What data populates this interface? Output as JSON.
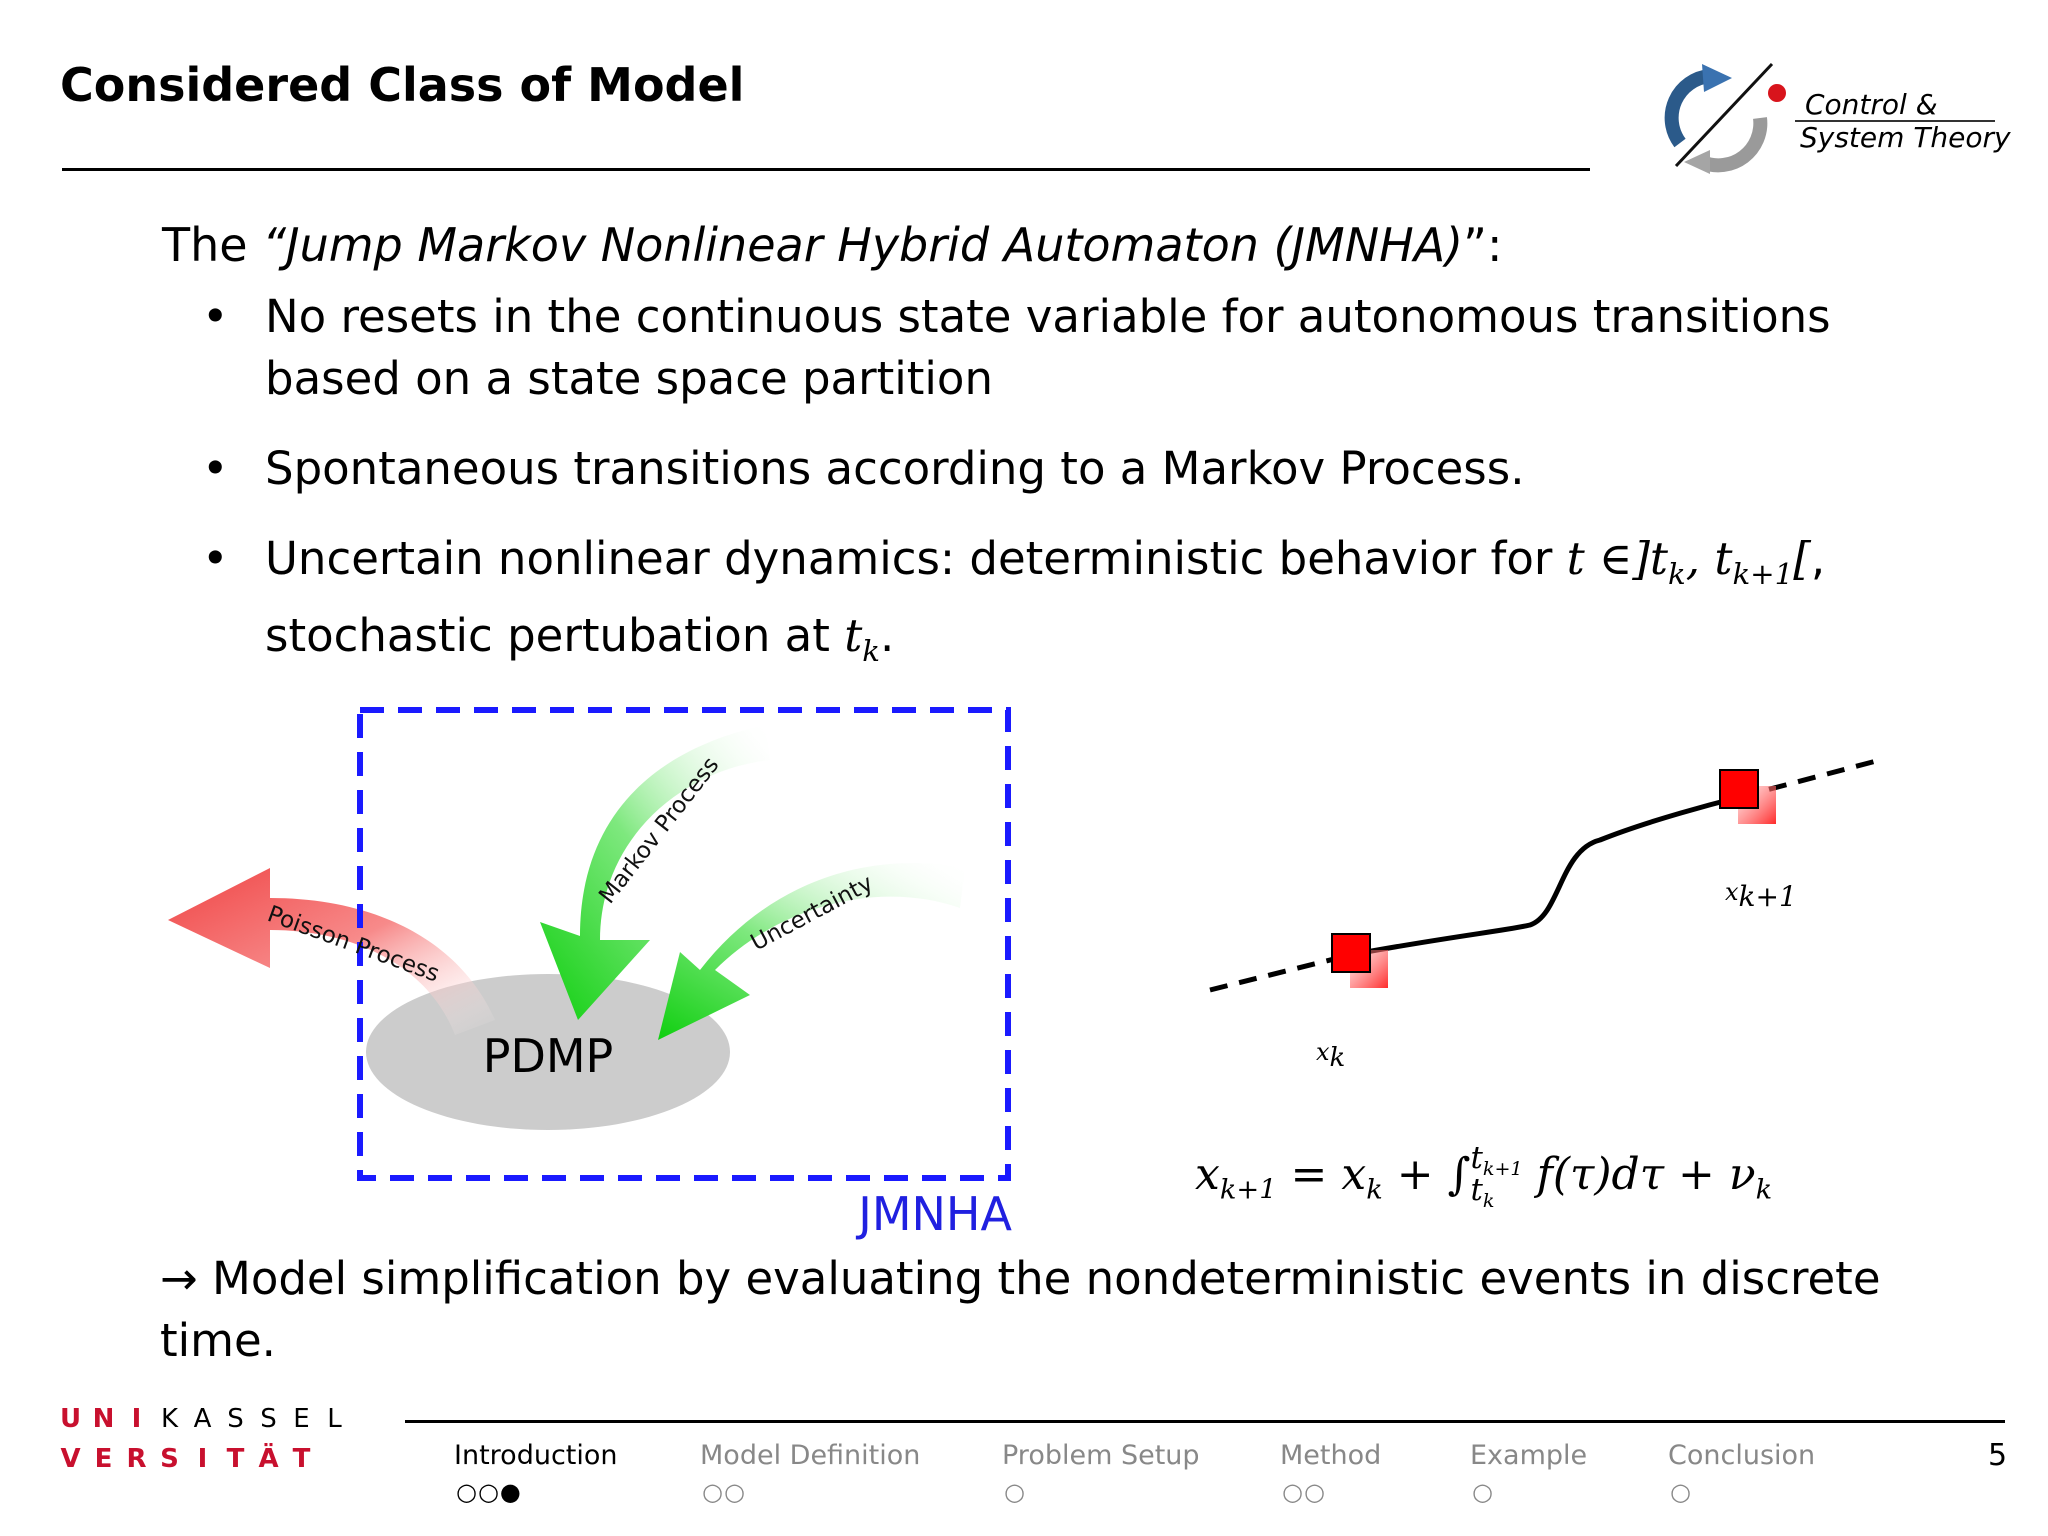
{
  "slide": {
    "title": "Considered Class of Model",
    "page_number": "5"
  },
  "logo": {
    "line1": "Control &",
    "line2": "System Theory"
  },
  "intro": {
    "prefix": "The ",
    "name": "“Jump Markov Nonlinear Hybrid Automaton (JMNHA)",
    "suffix": "”:"
  },
  "bullets": [
    {
      "text": "No resets in the continuous state variable for autonomous transitions based on a state space partition"
    },
    {
      "text": "Spontaneous transitions according to a Markov Process."
    },
    {
      "text_a": "Uncertain nonlinear dynamics: deterministic behavior for ",
      "math": "t ∈]t",
      "text_b": "stochastic pertubation at "
    }
  ],
  "diagram": {
    "center_label": "PDMP",
    "arrow_poisson": "Poisson Process",
    "arrow_markov": "Markov Process",
    "arrow_uncertainty": "Uncertainty",
    "box_label": "JMNHA",
    "colors": {
      "box": "#1a1aff",
      "red_arrow": "#f24a4a",
      "green_arrow": "#16d116",
      "ellipse": "#cccccc",
      "box_label": "#2020e0"
    }
  },
  "trajectory": {
    "label_start": "x",
    "label_start_sub": "k",
    "label_end": "x",
    "label_end_sub": "k+1"
  },
  "formula": {
    "lhs": "x",
    "lhs_sub": "k+1",
    "eq": " = x",
    "x_sub": "k",
    "plus": " + ∫",
    "int_lower": "t",
    "int_lower_sub": "k",
    "int_upper": "t",
    "int_upper_sub": "k+1",
    "body": " f(τ)dτ + ν",
    "nu_sub": "k"
  },
  "conclusion": "→ Model simplification by evaluating the nondeterministic events in discrete time.",
  "university_logo": {
    "row1": [
      "U",
      "N",
      "I",
      "K",
      "A",
      "S",
      "S",
      "E",
      "L"
    ],
    "row2": [
      "V",
      "E",
      "R",
      "S",
      "I",
      "T",
      "Ä",
      "T"
    ]
  },
  "nav": [
    {
      "label": "Introduction",
      "dots": "○○●",
      "active": true
    },
    {
      "label": "Model Definition",
      "dots": "○○",
      "active": false
    },
    {
      "label": "Problem Setup",
      "dots": "○",
      "active": false
    },
    {
      "label": "Method",
      "dots": "○○",
      "active": false
    },
    {
      "label": "Example",
      "dots": "○",
      "active": false
    },
    {
      "label": "Conclusion",
      "dots": "○",
      "active": false
    }
  ]
}
